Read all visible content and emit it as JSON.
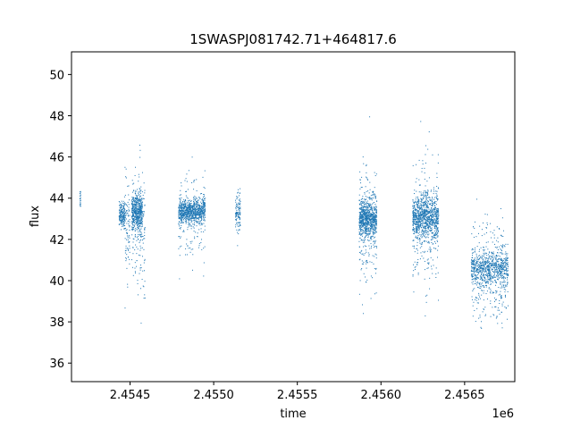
{
  "chart_data": {
    "type": "scatter",
    "title": "1SWASPJ081742.71+464817.6",
    "xlabel": "time",
    "ylabel": "flux",
    "x_offset_label": "1e6",
    "xlim": [
      2454150,
      2456800
    ],
    "ylim": [
      35.1,
      51.1
    ],
    "x_ticks": [
      2454500,
      2455000,
      2455500,
      2456000,
      2456500
    ],
    "x_tick_labels": [
      "2.4545",
      "2.4550",
      "2.4555",
      "2.4560",
      "2.4565"
    ],
    "y_ticks": [
      36,
      38,
      40,
      42,
      44,
      46,
      48,
      50
    ],
    "y_tick_labels": [
      "36",
      "38",
      "40",
      "42",
      "44",
      "46",
      "48",
      "50"
    ],
    "grid": false,
    "marker_color": "#1f77b4",
    "series": [
      {
        "clusters": [
          {
            "x_start": 2454200,
            "x_end": 2454205,
            "center": 44.0,
            "spread": 0.5,
            "n": 20
          },
          {
            "x_start": 2454435,
            "x_end": 2454470,
            "center": 43.2,
            "spread": 0.6,
            "n": 180
          },
          {
            "x_start": 2454470,
            "x_end": 2454500,
            "center": 42.5,
            "spread": 2.2,
            "n": 90
          },
          {
            "x_start": 2454510,
            "x_end": 2454575,
            "center": 43.3,
            "spread": 0.9,
            "n": 500
          },
          {
            "x_start": 2454510,
            "x_end": 2454590,
            "center": 42.5,
            "spread": 3.2,
            "n": 160
          },
          {
            "x_start": 2454790,
            "x_end": 2454880,
            "center": 43.3,
            "spread": 0.5,
            "n": 450
          },
          {
            "x_start": 2454880,
            "x_end": 2454950,
            "center": 43.4,
            "spread": 0.6,
            "n": 350
          },
          {
            "x_start": 2454790,
            "x_end": 2454950,
            "center": 43.0,
            "spread": 2.4,
            "n": 170
          },
          {
            "x_start": 2455130,
            "x_end": 2455160,
            "center": 43.2,
            "spread": 1.0,
            "n": 120
          },
          {
            "x_start": 2455870,
            "x_end": 2455975,
            "center": 43.0,
            "spread": 0.8,
            "n": 700
          },
          {
            "x_start": 2455870,
            "x_end": 2455975,
            "center": 42.6,
            "spread": 3.0,
            "n": 260
          },
          {
            "x_start": 2456190,
            "x_end": 2456345,
            "center": 43.1,
            "spread": 1.0,
            "n": 800
          },
          {
            "x_start": 2456190,
            "x_end": 2456345,
            "center": 42.6,
            "spread": 3.1,
            "n": 320
          },
          {
            "x_start": 2456540,
            "x_end": 2456760,
            "center": 40.6,
            "spread": 0.8,
            "n": 700
          },
          {
            "x_start": 2456540,
            "x_end": 2456760,
            "center": 40.3,
            "spread": 2.6,
            "n": 300
          }
        ]
      }
    ]
  }
}
